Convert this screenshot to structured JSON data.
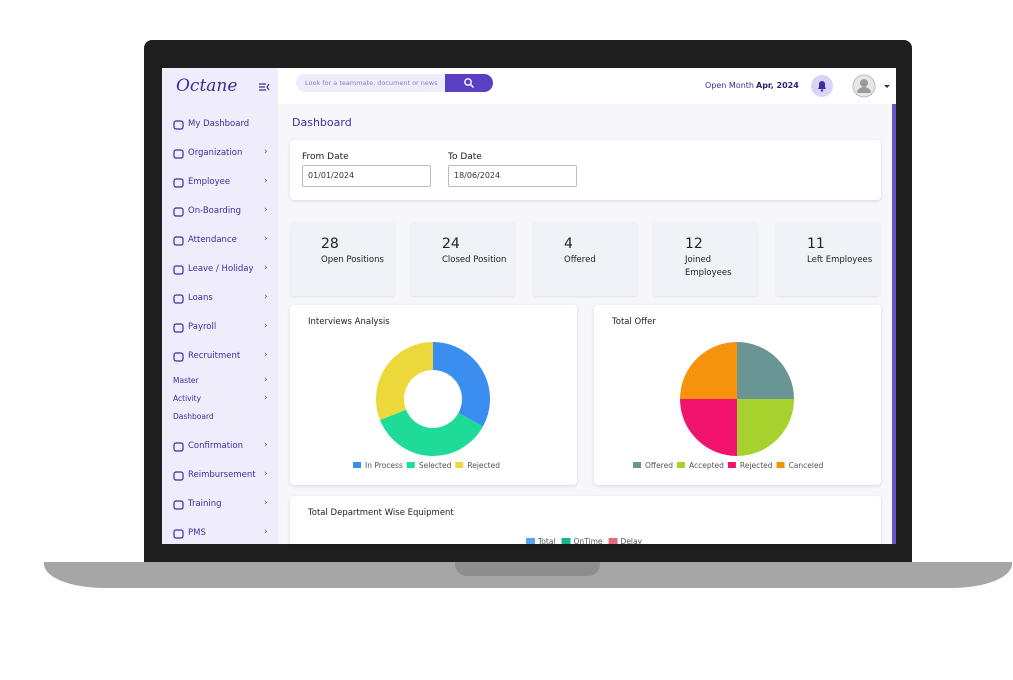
{
  "sidebar": {
    "logo": "Octane",
    "menu": [
      "My Dashboard",
      "Organization",
      "Employee",
      "On-Boarding",
      "Attendance",
      "Leave / Holiday",
      "Loans",
      "Payroll",
      "Recruitment"
    ],
    "submenu": [
      "Master",
      "Activity",
      "Dashboard"
    ],
    "menu_after": [
      "Confirmation",
      "Reimbursement",
      "Training",
      "PMS"
    ]
  },
  "topbar": {
    "search_placeholder": "Look for a teammate, document or news",
    "open_month_label": "Open Month",
    "open_month": "Apr, 2024"
  },
  "page_title": "Dashboard",
  "filters": [
    {
      "label": "From Date",
      "value": "01/01/2024"
    },
    {
      "label": "To Date",
      "value": "18/06/2024"
    }
  ],
  "stats": [
    {
      "value": 28,
      "label": "Open Positions"
    },
    {
      "value": 24,
      "label": "Closed Position"
    },
    {
      "value": 4,
      "label": "Offered"
    },
    {
      "value": 12,
      "label": "Joined Employees"
    },
    {
      "value": 11,
      "label": "Left Employees"
    }
  ],
  "interviews_chart": {
    "type": "donut",
    "title": "Interviews Analysis",
    "categories": [
      "In Process",
      "Selected",
      "Rejected"
    ],
    "values": [
      33,
      36,
      31
    ],
    "colors": [
      "#3a8ef0",
      "#1edc98",
      "#ecd83a"
    ]
  },
  "offer_chart": {
    "type": "pie",
    "title": "Total Offer",
    "categories": [
      "Offered",
      "Accepted",
      "Rejected",
      "Canceled"
    ],
    "values": [
      25,
      25,
      25,
      25
    ],
    "colors": [
      "#6a9595",
      "#a7d22e",
      "#f0146e",
      "#f7920c"
    ]
  },
  "equipment_chart": {
    "title": "Total Department Wise Equipment",
    "series": [
      {
        "name": "Total",
        "color": "#5aa5ea"
      },
      {
        "name": "OnTime",
        "color": "#19b38a"
      },
      {
        "name": "Delay",
        "color": "#e06d7a"
      }
    ]
  }
}
